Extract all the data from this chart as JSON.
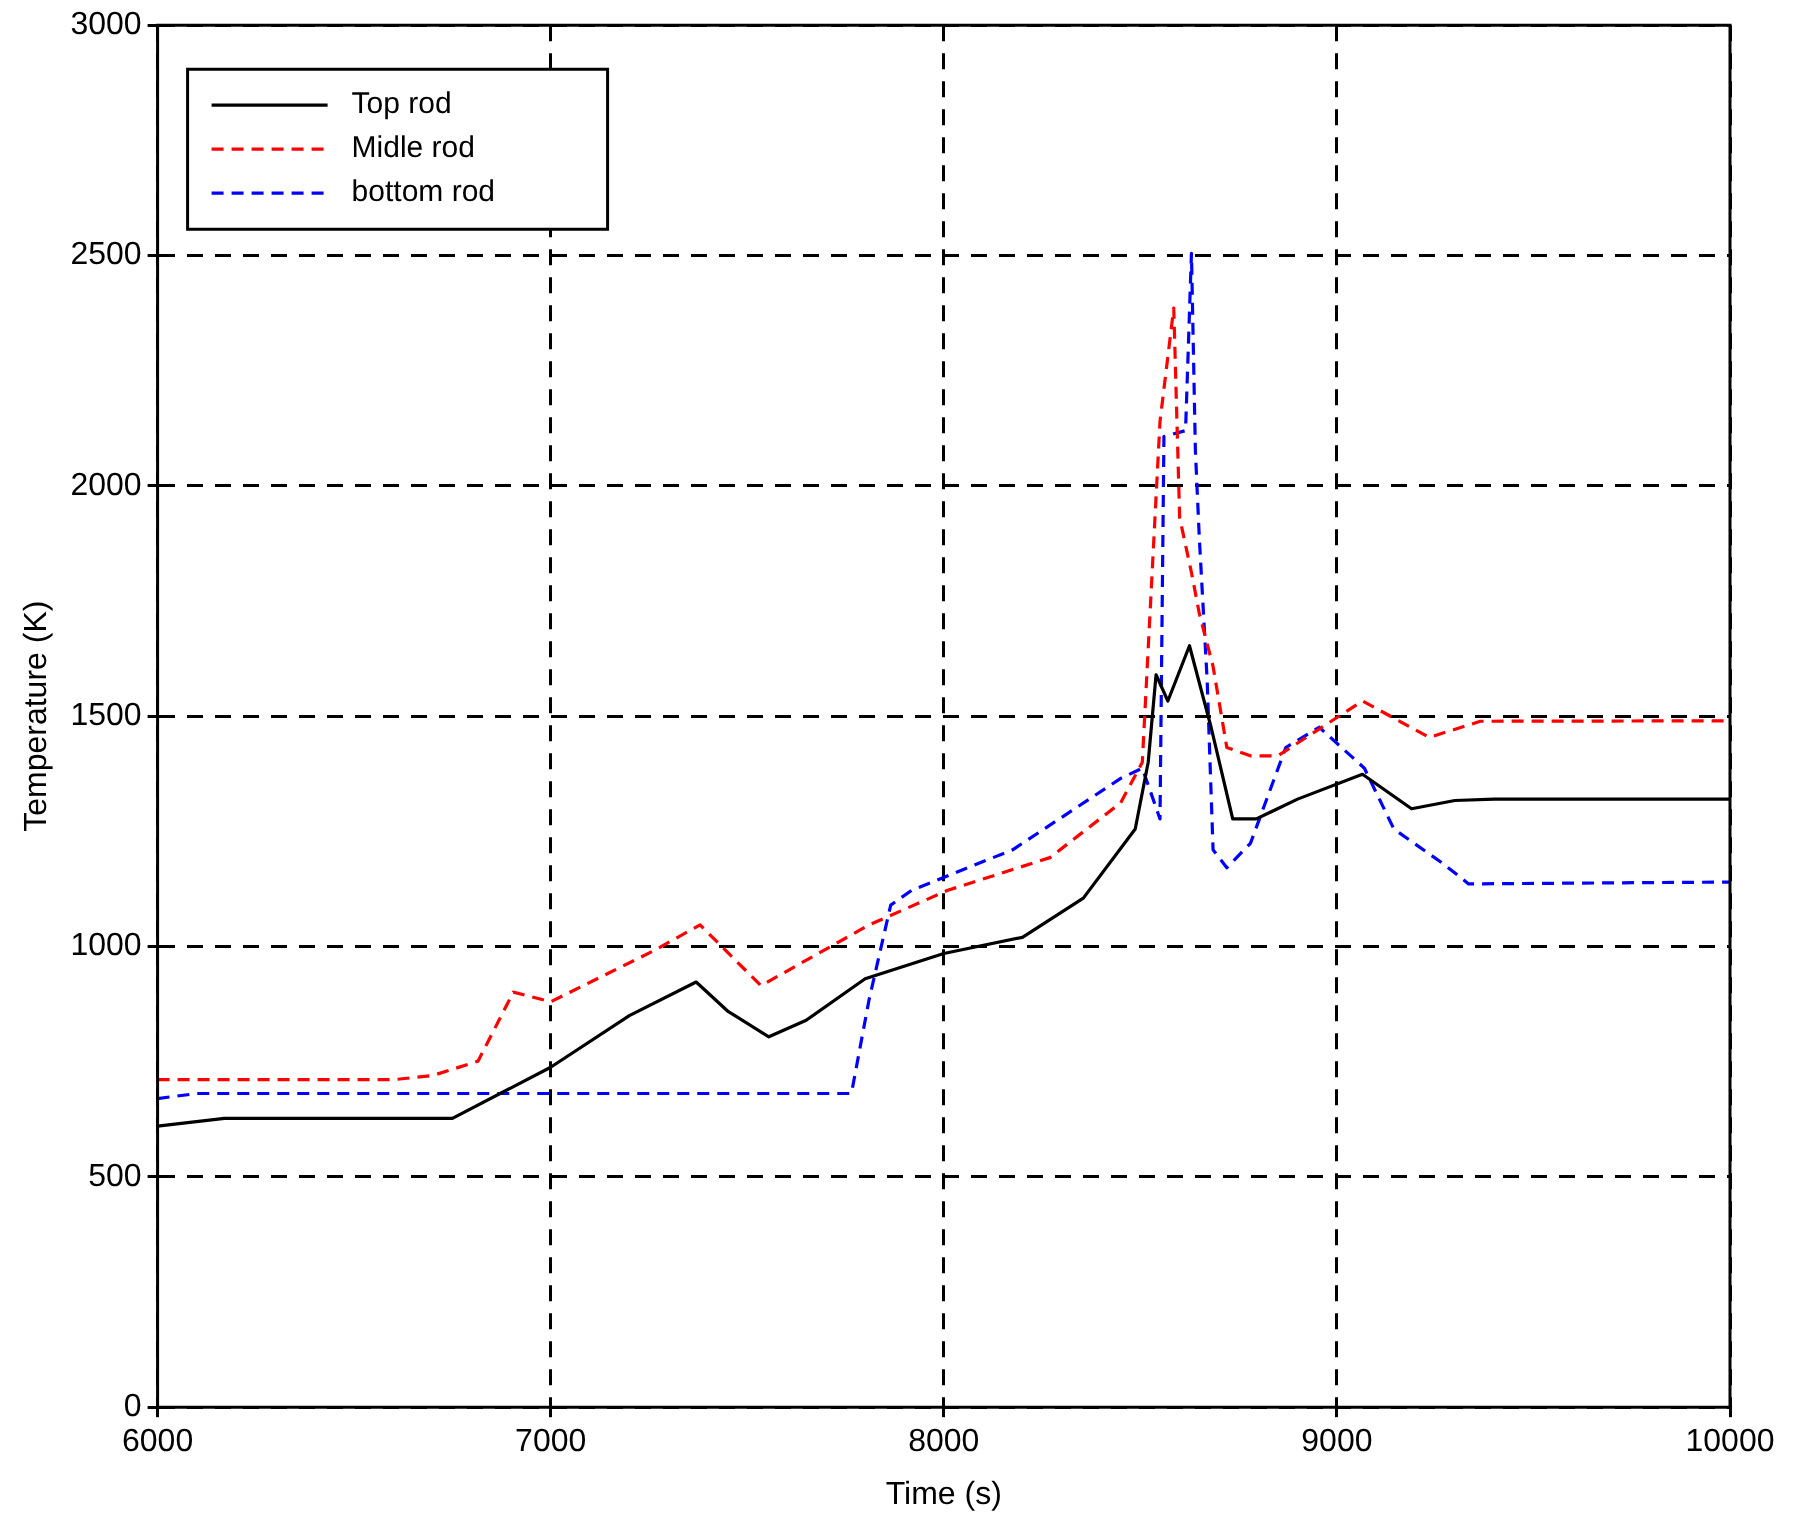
{
  "chart_data": {
    "type": "line",
    "xlabel": "Time (s)",
    "ylabel": "Temperature (K)",
    "xlim": [
      6000,
      10000
    ],
    "xticks": [
      6000,
      7000,
      8000,
      9000,
      10000
    ],
    "ylim": [
      0,
      3000
    ],
    "yticks": [
      0,
      500,
      1000,
      1500,
      2000,
      2500,
      3000
    ],
    "grid": true,
    "legend": "top left",
    "marker": "none",
    "series": [
      {
        "name": "Top rod",
        "color": "#000000",
        "line_style": "solid",
        "x": [
          6000,
          6170,
          6750,
          7000,
          7200,
          7370,
          7450,
          7555,
          7650,
          7800,
          8000,
          8200,
          8355,
          8487,
          8520,
          8540,
          8570,
          8625,
          8680,
          8735,
          8795,
          8900,
          9065,
          9190,
          9300,
          9400,
          10000
        ],
        "values": [
          610,
          627,
          627,
          738,
          850,
          923,
          860,
          804,
          840,
          930,
          985,
          1020,
          1105,
          1255,
          1400,
          1590,
          1533,
          1653,
          1476,
          1277,
          1277,
          1320,
          1374,
          1299,
          1317,
          1320,
          1320
        ]
      },
      {
        "name": "Midle rod",
        "color": "#ff0000",
        "line_style": "dashed",
        "x": [
          6000,
          6600,
          6700,
          6815,
          6905,
          7000,
          7260,
          7380,
          7535,
          7810,
          8010,
          8270,
          8450,
          8505,
          8530,
          8550,
          8585,
          8600,
          8630,
          8650,
          8685,
          8720,
          8780,
          8850,
          9065,
          9235,
          9365,
          10000
        ],
        "values": [
          711,
          711,
          720,
          751,
          901,
          880,
          990,
          1047,
          915,
          1047,
          1122,
          1193,
          1312,
          1400,
          1812,
          2140,
          2386,
          1931,
          1812,
          1723,
          1608,
          1432,
          1414,
          1414,
          1533,
          1454,
          1489,
          1490
        ]
      },
      {
        "name": "bottom rod",
        "color": "#0000ff",
        "line_style": "dashed",
        "x": [
          6000,
          6100,
          7765,
          7810,
          7865,
          7918,
          8175,
          8450,
          8505,
          8530,
          8550,
          8560,
          8615,
          8630,
          8640,
          8650,
          8670,
          8685,
          8720,
          8780,
          8870,
          8955,
          9070,
          9145,
          9270,
          9335,
          10000
        ],
        "values": [
          670,
          681,
          681,
          885,
          1090,
          1122,
          1210,
          1365,
          1387,
          1326,
          1277,
          2107,
          2120,
          2505,
          2077,
          1887,
          1578,
          1210,
          1171,
          1224,
          1432,
          1476,
          1387,
          1255,
          1180,
          1136,
          1140
        ]
      }
    ]
  }
}
